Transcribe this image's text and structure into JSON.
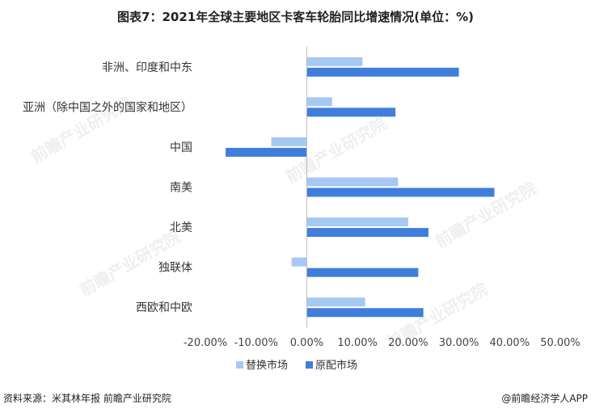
{
  "title": "图表7：2021年全球主要地区卡客车轮胎同比增速情况(单位：%)",
  "footer": {
    "source": "资料来源：米其林年报 前瞻产业研究院",
    "brand": "@前瞻经济学人APP"
  },
  "watermark": "前瞻产业研究院",
  "colors": {
    "replacement": "#a8c8f4",
    "original": "#3f7fdb"
  },
  "chart_data": {
    "type": "bar",
    "orientation": "horizontal",
    "categories": [
      "非洲、印度和中东",
      "亚洲（除中国之外的国家和地区）",
      "中国",
      "南美",
      "北美",
      "独联体",
      "西欧和中欧"
    ],
    "series": [
      {
        "name": "替换市场",
        "values": [
          11,
          5,
          -7,
          18,
          20,
          -3,
          11.5
        ]
      },
      {
        "name": "原配市场",
        "values": [
          30,
          17.5,
          -16,
          37,
          24,
          22,
          23
        ]
      }
    ],
    "xlim": [
      -20,
      50
    ],
    "xticks": [
      "-20.00%",
      "-10.00%",
      "0.00%",
      "10.00%",
      "20.00%",
      "30.00%",
      "40.00%",
      "50.00%"
    ],
    "legend": "bottom",
    "grid": false
  }
}
